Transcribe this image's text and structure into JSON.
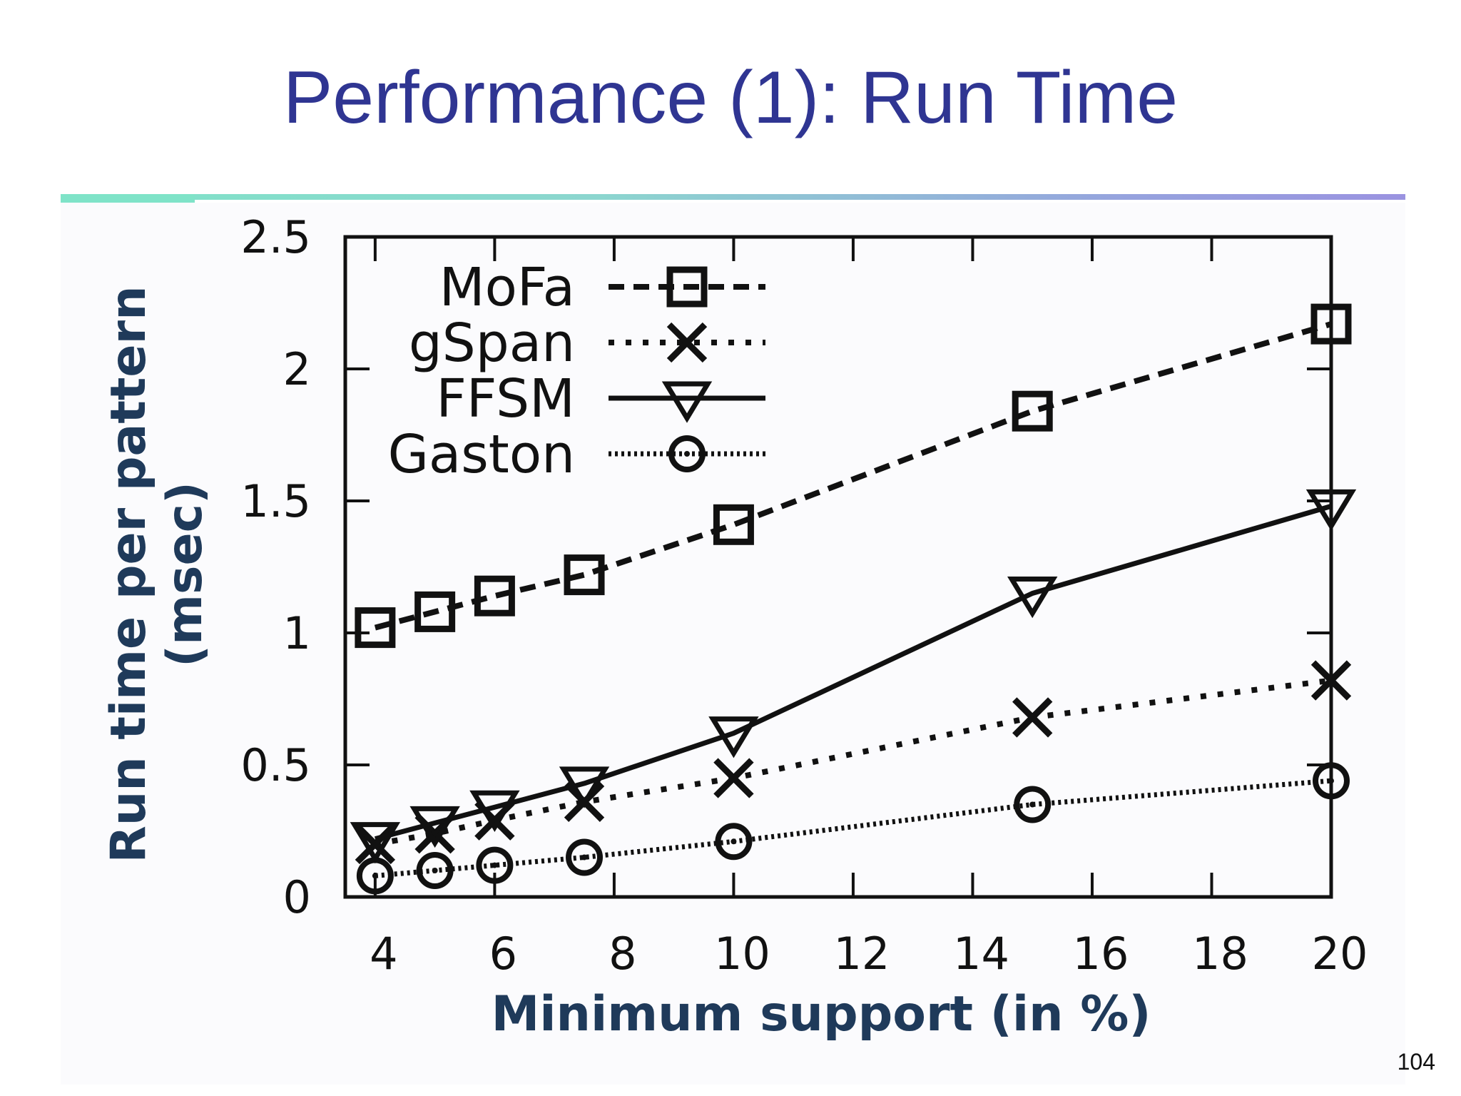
{
  "slide": {
    "title": "Performance (1): Run Time",
    "page_number": "104"
  },
  "colors": {
    "title": "#2f3592",
    "axis_label": "#1f3a5a",
    "rule_start": "#7fe3c8",
    "rule_end": "#9a93e0"
  },
  "chart_data": {
    "type": "line",
    "xlabel": "Minimum support (in %)",
    "ylabel_lines": [
      "Run time per pattern",
      "(msec)"
    ],
    "xlim": [
      3.5,
      20
    ],
    "ylim": [
      0,
      2.5
    ],
    "xticks": [
      4,
      6,
      8,
      10,
      12,
      14,
      16,
      18,
      20
    ],
    "xtick_labels": [
      "4",
      "6",
      "8",
      "10",
      "12",
      "14",
      "16",
      "18",
      "20"
    ],
    "yticks": [
      0,
      0.5,
      1,
      1.5,
      2,
      2.5
    ],
    "ytick_labels": [
      "0",
      "0.5",
      "1",
      "1.5",
      "2",
      "2.5"
    ],
    "grid": false,
    "legend_position": "top-left",
    "x": [
      4,
      5,
      6,
      7.5,
      10,
      15,
      20
    ],
    "series": [
      {
        "name": "MoFa",
        "marker": "square",
        "line": "dashed",
        "values": [
          1.02,
          1.08,
          1.14,
          1.22,
          1.41,
          1.84,
          2.17
        ]
      },
      {
        "name": "gSpan",
        "marker": "x",
        "line": "dotted",
        "values": [
          0.2,
          0.24,
          0.29,
          0.36,
          0.45,
          0.68,
          0.82
        ]
      },
      {
        "name": "FFSM",
        "marker": "triangle-down",
        "line": "solid",
        "values": [
          0.22,
          0.28,
          0.34,
          0.43,
          0.62,
          1.15,
          1.48
        ]
      },
      {
        "name": "Gaston",
        "marker": "circle",
        "line": "fine-dotted",
        "values": [
          0.08,
          0.1,
          0.12,
          0.15,
          0.21,
          0.35,
          0.44
        ]
      }
    ]
  }
}
